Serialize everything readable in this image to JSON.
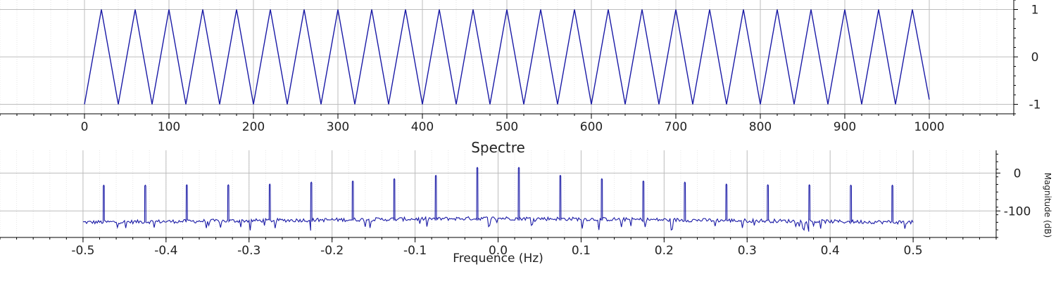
{
  "chart_data": [
    {
      "type": "line",
      "title": "",
      "xlabel": "",
      "ylabel": "",
      "xlim": [
        -100,
        1100
      ],
      "ylim": [
        -1.2,
        1.2
      ],
      "xticks": [
        0,
        100,
        200,
        300,
        400,
        500,
        600,
        700,
        800,
        900,
        1000
      ],
      "xtick_labels": [
        "0",
        "100",
        "200",
        "300",
        "400",
        "500",
        "600",
        "700",
        "800",
        "900",
        "1000"
      ],
      "yticks": [
        -1,
        0,
        1
      ],
      "ytick_labels": [
        "-1",
        "0",
        "1"
      ],
      "y_axis_side": "right",
      "grid": true,
      "line_color": "#1a1aa6",
      "series": [
        {
          "x": [
            0,
            20,
            40,
            60,
            80,
            100,
            120,
            140,
            160,
            180,
            200,
            220,
            240,
            260,
            280,
            300,
            320,
            340,
            360,
            380,
            400,
            420,
            440,
            460,
            480,
            500,
            520,
            540,
            560,
            580,
            600,
            620,
            640,
            660,
            680,
            700,
            720,
            740,
            760,
            780,
            800,
            820,
            840,
            860,
            880,
            900,
            920,
            940,
            960,
            980,
            1000
          ],
          "values": [
            -1,
            1,
            -1,
            1,
            -1,
            1,
            -1,
            1,
            -1,
            1,
            -1,
            1,
            -1,
            1,
            -1,
            1,
            -1,
            1,
            -1,
            1,
            -1,
            1,
            -1,
            1,
            -1,
            1,
            -1,
            1,
            -1,
            1,
            -1,
            1,
            -1,
            1,
            -1,
            1,
            -1,
            1,
            -1,
            1,
            -1,
            1,
            -1,
            1,
            -1,
            1,
            -1,
            1,
            -1,
            1,
            -0.9
          ]
        }
      ]
    },
    {
      "type": "line",
      "title": "Spectre",
      "xlabel": "Frequence (Hz)",
      "ylabel": "Magnitude (dB)",
      "xlim": [
        -0.6,
        0.6
      ],
      "ylim": [
        -170,
        60
      ],
      "xticks": [
        -0.5,
        -0.4,
        -0.3,
        -0.2,
        -0.1,
        0.0,
        0.1,
        0.2,
        0.3,
        0.4,
        0.5
      ],
      "xtick_labels": [
        "-0.5",
        "-0.4",
        "-0.3",
        "-0.2",
        "-0.1",
        "0.0",
        "0.1",
        "0.2",
        "0.3",
        "0.4",
        "0.5"
      ],
      "yticks": [
        0,
        -100
      ],
      "ytick_labels": [
        "0",
        "-100"
      ],
      "y_axis_side": "right",
      "grid": true,
      "line_color": "#1a1aa6",
      "noise_floor_db": -130,
      "series": [
        {
          "peak_frequencies": [
            -0.475,
            -0.425,
            -0.375,
            -0.325,
            -0.275,
            -0.225,
            -0.175,
            -0.125,
            -0.075,
            -0.025,
            0.025,
            0.075,
            0.125,
            0.175,
            0.225,
            0.275,
            0.325,
            0.375,
            0.425,
            0.475
          ],
          "peak_db": [
            -32,
            -32,
            -31,
            -31,
            -29,
            -24,
            -21,
            -15,
            -6,
            15,
            15,
            -6,
            -15,
            -21,
            -24,
            -29,
            -31,
            -31,
            -32,
            -32
          ]
        }
      ]
    }
  ]
}
